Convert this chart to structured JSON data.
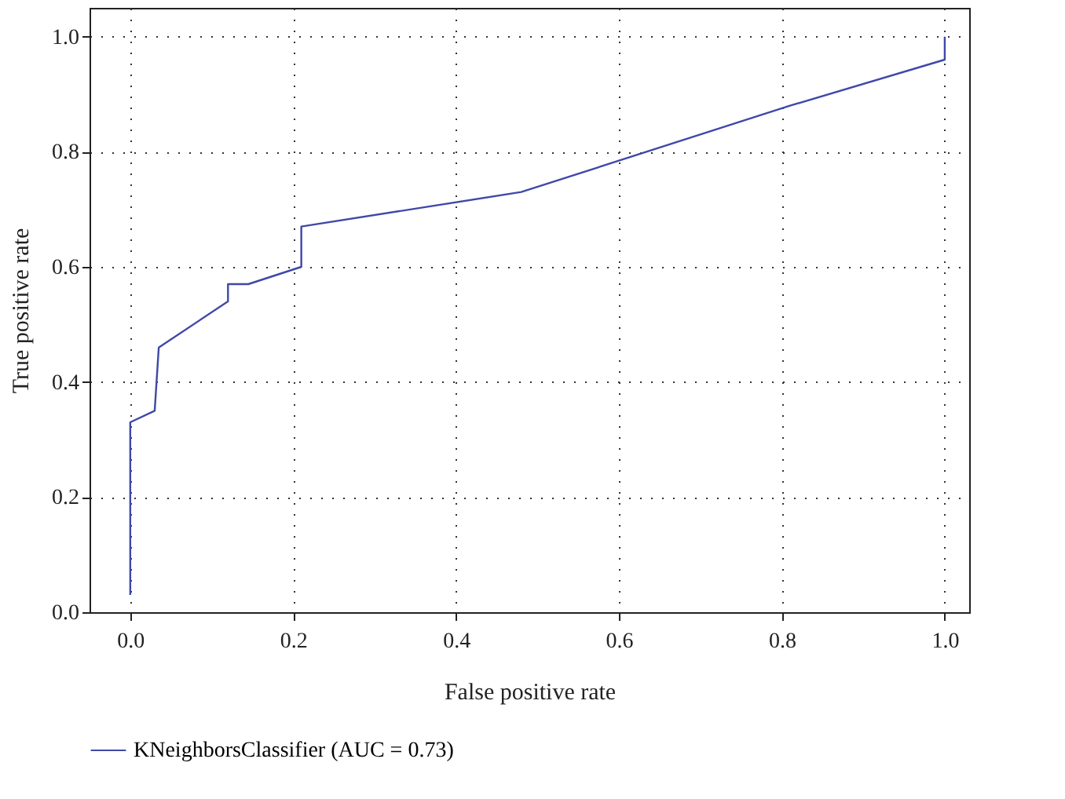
{
  "chart_data": {
    "type": "line",
    "xlabel": "False positive rate",
    "ylabel": "True positive rate",
    "series": [
      {
        "name": "KNeighborsClassifier (AUC = 0.73)",
        "color": "#3f48a8",
        "x": [
          0,
          0,
          0.03,
          0.035,
          0.12,
          0.12,
          0.145,
          0.21,
          0.21,
          0.48,
          0.81,
          1.0,
          1.0
        ],
        "values": [
          0.03,
          0.33,
          0.35,
          0.46,
          0.54,
          0.57,
          0.57,
          0.6,
          0.67,
          0.73,
          0.88,
          0.96,
          1.0
        ]
      }
    ],
    "xlim": [
      -0.05,
      1.03
    ],
    "ylim": [
      0,
      1.05
    ],
    "xticks": [
      {
        "value": 0,
        "label": "0.0"
      },
      0.2,
      0.4,
      0.6,
      0.8,
      {
        "value": 1,
        "label": "1.0"
      }
    ],
    "yticks": [
      {
        "value": 0,
        "label": "0.0"
      },
      0.2,
      0.4,
      0.6,
      0.8,
      {
        "value": 1,
        "label": "1.0"
      }
    ],
    "grid": true,
    "legend": "bottom",
    "marker": "none",
    "line_style": "solid"
  }
}
